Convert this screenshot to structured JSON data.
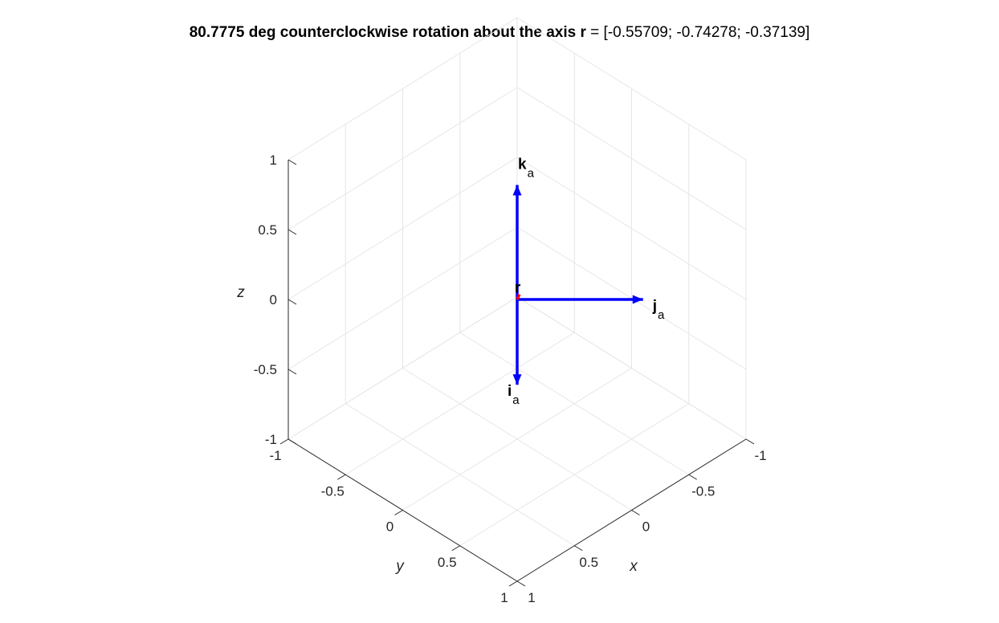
{
  "chart_data": {
    "type": "3d-vector-plot",
    "title": {
      "bold_part": "80.7775 deg counterclockwise rotation about the axis r",
      "rest": " = [-0.55709; -0.74278; -0.37139]"
    },
    "xlabel": "x",
    "ylabel": "y",
    "zlabel": "z",
    "xlim": [
      -1,
      1
    ],
    "ylim": [
      -1,
      1
    ],
    "zlim": [
      -1,
      1
    ],
    "xticks": [
      -1,
      -0.5,
      0,
      0.5,
      1
    ],
    "yticks": [
      -1,
      -0.5,
      0,
      0.5,
      1
    ],
    "zticks": [
      -1,
      -0.5,
      0,
      0.5,
      1
    ],
    "xtick_labels": [
      "-1",
      "-0.5",
      "0",
      "0.5",
      "1"
    ],
    "ytick_labels": [
      "-1",
      "-0.5",
      "0",
      "0.5",
      "1"
    ],
    "ztick_labels": [
      "-1",
      "-0.5",
      "0",
      "0.5",
      "1"
    ],
    "grid": true,
    "box": "open",
    "view": {
      "azimuth": 135,
      "elevation": 35.26
    },
    "vectors": [
      {
        "label": "i",
        "subscript": "a",
        "color": "#0000ff",
        "from": [
          0,
          0,
          0
        ],
        "to": [
          0.6,
          0.6,
          0.0
        ],
        "arrow": true
      },
      {
        "label": "j",
        "subscript": "a",
        "color": "#0000ff",
        "from": [
          0,
          0,
          0
        ],
        "to": [
          0.55,
          -0.55,
          0.0
        ],
        "arrow": true
      },
      {
        "label": "k",
        "subscript": "a",
        "color": "#0000ff",
        "from": [
          0,
          0,
          0
        ],
        "to": [
          0.0,
          0.0,
          0.82
        ],
        "arrow": true
      },
      {
        "label": "r",
        "subscript": "",
        "color": "#ff0000",
        "from": [
          0,
          0,
          0
        ],
        "to": [
          -0.07,
          -0.09,
          -0.045
        ],
        "arrow": false
      }
    ]
  }
}
